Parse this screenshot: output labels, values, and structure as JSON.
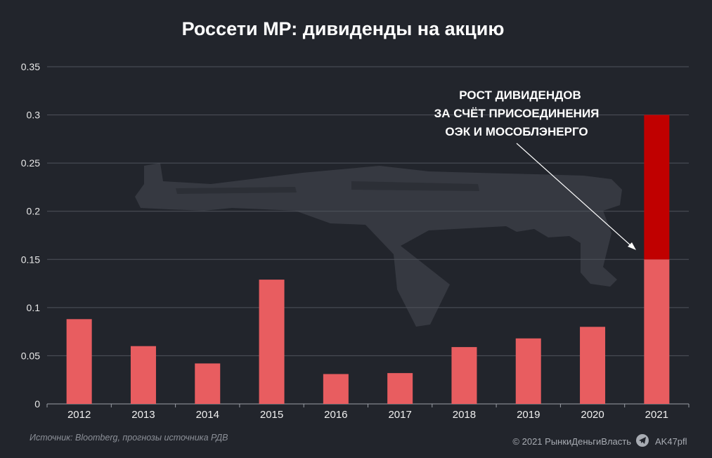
{
  "title": "Россети МР: дивиденды на акцию",
  "annotation": {
    "lines": [
      "РОСТ ДИВИДЕНДОВ",
      "ЗА СЧЁТ ПРИСОЕДИНЕНИЯ",
      "ОЭК И МОСОБЛЭНЕРГО"
    ]
  },
  "source": "Источник: Bloomberg, прогнозы источника РДВ",
  "copyright": "© 2021 РынкиДеньгиВласть",
  "channel": "AK47pfl",
  "icons": {
    "channel": "telegram-icon",
    "watermark": "rifle-silhouette"
  },
  "colors": {
    "background": "#22252c",
    "bar": "#e85d60",
    "bar_highlight": "#c00000",
    "watermark": "#363941"
  },
  "chart_data": {
    "type": "bar",
    "stacked": true,
    "categories": [
      "2012",
      "2013",
      "2014",
      "2015",
      "2016",
      "2017",
      "2018",
      "2019",
      "2020",
      "2021"
    ],
    "series": [
      {
        "values": [
          0.088,
          0.06,
          0.042,
          0.129,
          0.031,
          0.032,
          0.059,
          0.068,
          0.08,
          0.15
        ]
      },
      {
        "values": [
          0,
          0,
          0,
          0,
          0,
          0,
          0,
          0,
          0,
          0.15
        ]
      }
    ],
    "y_ticks": [
      "0",
      "0.05",
      "0.1",
      "0.15",
      "0.2",
      "0.25",
      "0.3",
      "0.35"
    ],
    "ylim": [
      0,
      0.35
    ],
    "grid": true,
    "legend": "none",
    "xlabel": "",
    "ylabel": ""
  }
}
